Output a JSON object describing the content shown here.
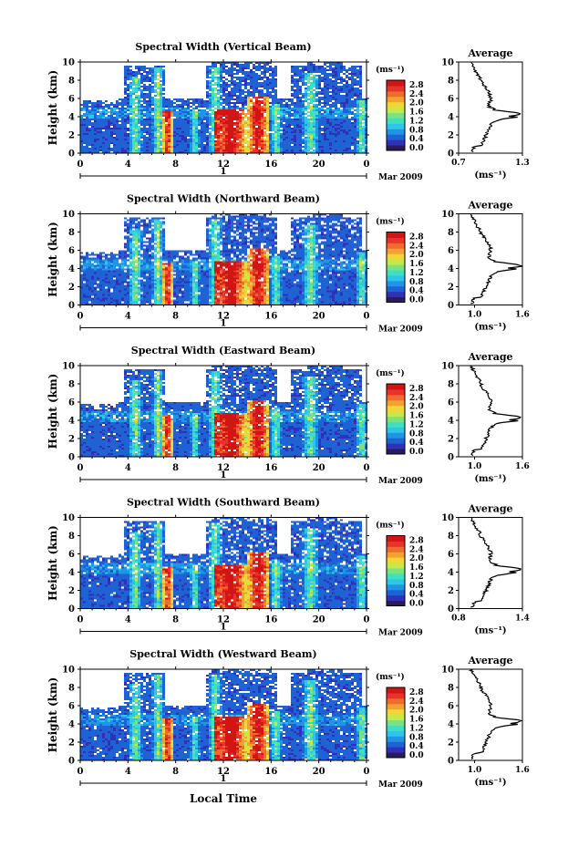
{
  "colors": {
    "colormap": [
      "#2a1b5c",
      "#3030b8",
      "#1f62d4",
      "#1f95e6",
      "#2dc6e8",
      "#3fe0c0",
      "#7be27f",
      "#c8e84a",
      "#f2d636",
      "#f4a133",
      "#ef6c2c",
      "#e8332b",
      "#d11515"
    ],
    "white": "#ffffff"
  },
  "chart_data": {
    "type": "heatmap",
    "xlabel": "Local Time",
    "date_label": "Mar 2009",
    "day_label": "1",
    "x_ticks": [
      "0",
      "4",
      "8",
      "12",
      "16",
      "20",
      "0"
    ],
    "y_ticks": [
      "0",
      "2",
      "4",
      "6",
      "8",
      "10"
    ],
    "ylabel": "Height (km)",
    "ylim": [
      0,
      10
    ],
    "colorbar": {
      "unit": "(ms⁻¹)",
      "ticks": [
        "0.0",
        "0.4",
        "0.8",
        "1.2",
        "1.6",
        "2.0",
        "2.4",
        "2.8"
      ]
    },
    "avg_title": "Average",
    "avg_xlabel": "(ms⁻¹)",
    "panels": [
      {
        "title": "Spectral Width (Vertical Beam)",
        "avg_ticks": [
          "0.7",
          "1.3"
        ],
        "avg_range": [
          0.7,
          1.3
        ]
      },
      {
        "title": "Spectral Width (Northward Beam)",
        "avg_ticks": [
          "1.0",
          "1.6"
        ],
        "avg_range": [
          0.8,
          1.6
        ]
      },
      {
        "title": "Spectral Width (Eastward Beam)",
        "avg_ticks": [
          "1.0",
          "1.6"
        ],
        "avg_range": [
          0.8,
          1.6
        ]
      },
      {
        "title": "Spectral Width (Southward Beam)",
        "avg_ticks": [
          "0.8",
          "1.4"
        ],
        "avg_range": [
          0.8,
          1.4
        ]
      },
      {
        "title": "Spectral Width (Westward Beam)",
        "avg_ticks": [
          "1.0",
          "1.6"
        ],
        "avg_range": [
          0.8,
          1.6
        ]
      }
    ]
  }
}
